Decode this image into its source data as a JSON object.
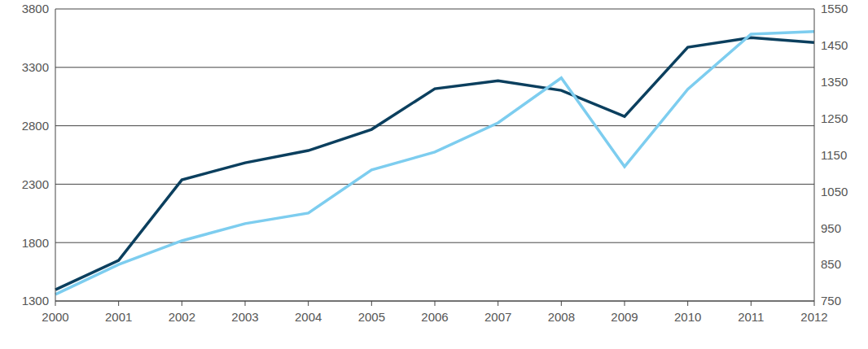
{
  "chart_data": {
    "type": "line",
    "categories": [
      "2000",
      "2001",
      "2002",
      "2003",
      "2004",
      "2005",
      "2006",
      "2007",
      "2008",
      "2009",
      "2010",
      "2011",
      "2012"
    ],
    "series": [
      {
        "color": "#0b3f5e",
        "values": [
          1397,
          1648,
          2337,
          2483,
          2588,
          2769,
          3117,
          3186,
          3103,
          2880,
          3472,
          3555,
          3513
        ]
      },
      {
        "color": "#7dcdef",
        "axis": "y2",
        "values": [
          768,
          850,
          915,
          962,
          991,
          1109,
          1158,
          1238,
          1361,
          1118,
          1330,
          1481,
          1488
        ]
      }
    ],
    "ylim": [
      1300,
      3800
    ],
    "yticks": [
      1300,
      1800,
      2300,
      2800,
      3300,
      3800
    ],
    "y2lim": [
      750,
      1550
    ],
    "y2ticks": [
      750,
      850,
      950,
      1050,
      1150,
      1250,
      1350,
      1450,
      1550
    ],
    "grid": true
  }
}
